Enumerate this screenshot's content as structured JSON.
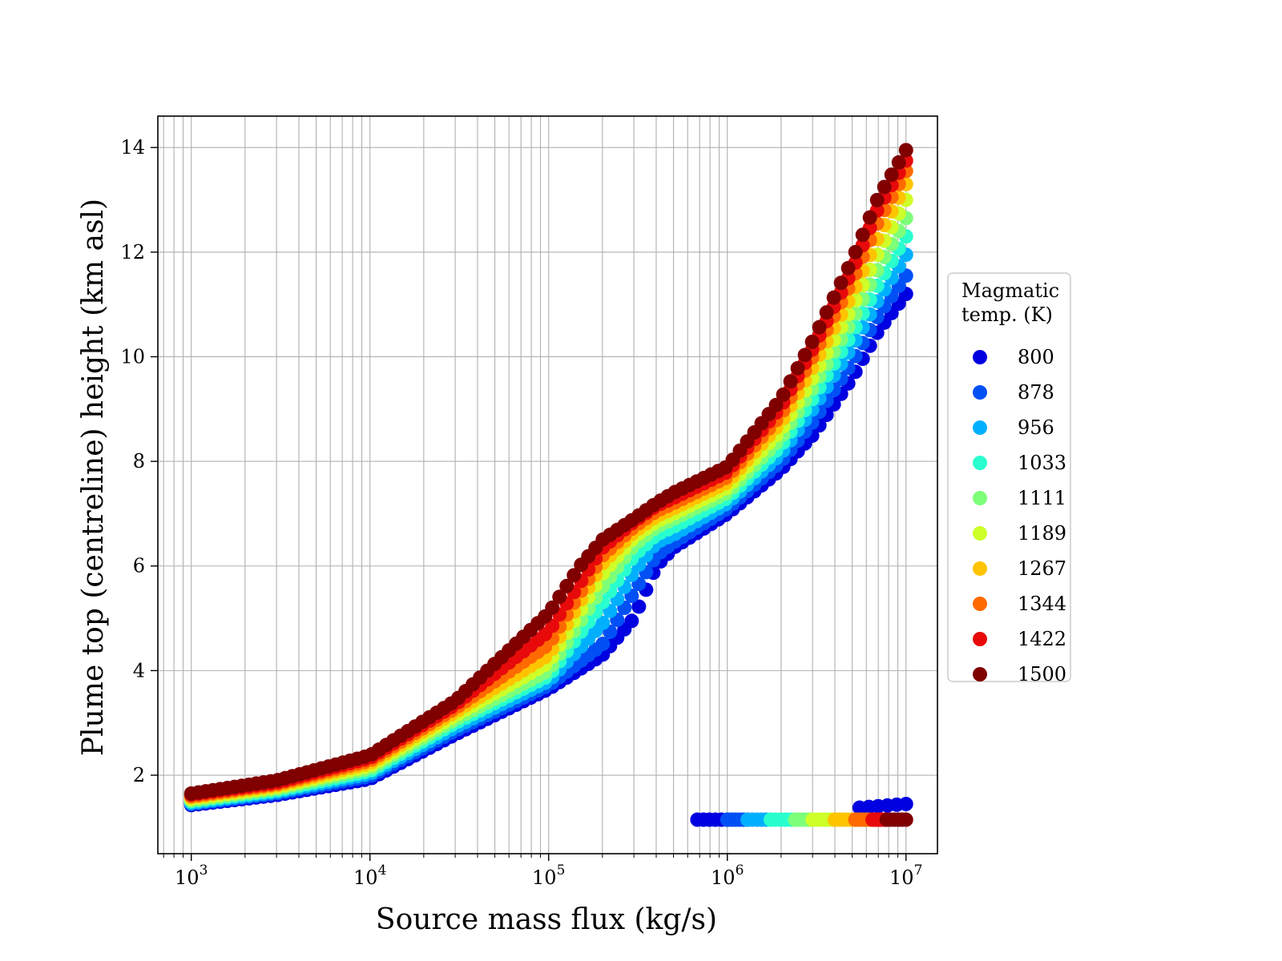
{
  "chart_data": {
    "type": "scatter",
    "xscale": "log",
    "xlim": [
      650,
      15000000
    ],
    "ylim": [
      0.5,
      14.6
    ],
    "xlabel": "Source mass flux (kg/s)",
    "ylabel": "Plume top (centreline) height (km asl)",
    "grid": true,
    "xticks": [
      {
        "value": 1000,
        "base": "10",
        "exp": "3"
      },
      {
        "value": 10000,
        "base": "10",
        "exp": "4"
      },
      {
        "value": 100000,
        "base": "10",
        "exp": "5"
      },
      {
        "value": 1000000,
        "base": "10",
        "exp": "6"
      },
      {
        "value": 10000000,
        "base": "10",
        "exp": "7"
      }
    ],
    "yticks": [
      {
        "value": 2,
        "label": "2"
      },
      {
        "value": 4,
        "label": "4"
      },
      {
        "value": 6,
        "label": "6"
      },
      {
        "value": 8,
        "label": "8"
      },
      {
        "value": 10,
        "label": "10"
      },
      {
        "value": 12,
        "label": "12"
      },
      {
        "value": 14,
        "label": "14"
      }
    ],
    "legend": {
      "title_line1": "Magmatic",
      "title_line2": "temp. (K)",
      "placement": "outside-right"
    },
    "point_count_per_series": 100,
    "series": [
      {
        "name": "800",
        "color": "#0000e0",
        "curve": [
          [
            1000,
            1.43
          ],
          [
            3000,
            1.62
          ],
          [
            10000,
            1.93
          ],
          [
            30000,
            2.78
          ],
          [
            100000,
            3.65
          ],
          [
            200000,
            4.3
          ],
          [
            300000,
            5.0
          ],
          [
            400000,
            6.0
          ],
          [
            500000,
            6.35
          ],
          [
            1000000,
            7.0
          ],
          [
            2000000,
            7.85
          ],
          [
            3000000,
            8.5
          ],
          [
            5000000,
            9.6
          ],
          [
            7000000,
            10.5
          ],
          [
            10000000,
            11.2
          ]
        ],
        "branch": [
          [
            5500000,
            1.38
          ],
          [
            10000000,
            1.45
          ]
        ]
      },
      {
        "name": "878",
        "color": "#0050f5",
        "curve": [
          [
            1000,
            1.45
          ],
          [
            3000,
            1.65
          ],
          [
            10000,
            1.98
          ],
          [
            30000,
            2.85
          ],
          [
            100000,
            3.72
          ],
          [
            200000,
            4.5
          ],
          [
            300000,
            5.5
          ],
          [
            400000,
            6.2
          ],
          [
            500000,
            6.45
          ],
          [
            1000000,
            7.1
          ],
          [
            2000000,
            8.0
          ],
          [
            3000000,
            8.75
          ],
          [
            5000000,
            9.9
          ],
          [
            7000000,
            10.8
          ],
          [
            10000000,
            11.55
          ]
        ]
      },
      {
        "name": "956",
        "color": "#00b0ff",
        "curve": [
          [
            1000,
            1.47
          ],
          [
            3000,
            1.68
          ],
          [
            10000,
            2.03
          ],
          [
            30000,
            2.92
          ],
          [
            100000,
            3.8
          ],
          [
            200000,
            4.9
          ],
          [
            300000,
            5.9
          ],
          [
            400000,
            6.45
          ],
          [
            500000,
            6.6
          ],
          [
            1000000,
            7.2
          ],
          [
            2000000,
            8.15
          ],
          [
            3000000,
            9.0
          ],
          [
            5000000,
            10.2
          ],
          [
            7000000,
            11.1
          ],
          [
            10000000,
            11.95
          ]
        ]
      },
      {
        "name": "1033",
        "color": "#29ffce",
        "curve": [
          [
            1000,
            1.5
          ],
          [
            3000,
            1.71
          ],
          [
            10000,
            2.08
          ],
          [
            30000,
            3.0
          ],
          [
            100000,
            3.9
          ],
          [
            200000,
            5.3
          ],
          [
            300000,
            6.2
          ],
          [
            400000,
            6.6
          ],
          [
            500000,
            6.75
          ],
          [
            1000000,
            7.3
          ],
          [
            2000000,
            8.3
          ],
          [
            3000000,
            9.2
          ],
          [
            5000000,
            10.45
          ],
          [
            7000000,
            11.4
          ],
          [
            10000000,
            12.3
          ]
        ]
      },
      {
        "name": "1111",
        "color": "#7dff7a",
        "curve": [
          [
            1000,
            1.52
          ],
          [
            3000,
            1.74
          ],
          [
            10000,
            2.13
          ],
          [
            30000,
            3.07
          ],
          [
            100000,
            4.0
          ],
          [
            200000,
            5.6
          ],
          [
            300000,
            6.4
          ],
          [
            400000,
            6.75
          ],
          [
            500000,
            6.9
          ],
          [
            1000000,
            7.4
          ],
          [
            2000000,
            8.45
          ],
          [
            3000000,
            9.4
          ],
          [
            5000000,
            10.7
          ],
          [
            7000000,
            11.7
          ],
          [
            10000000,
            12.65
          ]
        ]
      },
      {
        "name": "1189",
        "color": "#ceff29",
        "curve": [
          [
            1000,
            1.55
          ],
          [
            3000,
            1.77
          ],
          [
            10000,
            2.18
          ],
          [
            30000,
            3.14
          ],
          [
            100000,
            4.15
          ],
          [
            200000,
            5.85
          ],
          [
            300000,
            6.55
          ],
          [
            400000,
            6.85
          ],
          [
            500000,
            7.0
          ],
          [
            1000000,
            7.5
          ],
          [
            2000000,
            8.6
          ],
          [
            3000000,
            9.6
          ],
          [
            5000000,
            10.95
          ],
          [
            7000000,
            12.0
          ],
          [
            10000000,
            13.0
          ]
        ]
      },
      {
        "name": "1267",
        "color": "#ffc400",
        "curve": [
          [
            1000,
            1.58
          ],
          [
            3000,
            1.8
          ],
          [
            10000,
            2.23
          ],
          [
            30000,
            3.21
          ],
          [
            100000,
            4.3
          ],
          [
            200000,
            6.05
          ],
          [
            300000,
            6.65
          ],
          [
            400000,
            6.95
          ],
          [
            500000,
            7.1
          ],
          [
            1000000,
            7.6
          ],
          [
            2000000,
            8.75
          ],
          [
            3000000,
            9.8
          ],
          [
            5000000,
            11.2
          ],
          [
            7000000,
            12.3
          ],
          [
            10000000,
            13.3
          ]
        ]
      },
      {
        "name": "1344",
        "color": "#ff6a00",
        "curve": [
          [
            1000,
            1.6
          ],
          [
            3000,
            1.83
          ],
          [
            10000,
            2.28
          ],
          [
            30000,
            3.28
          ],
          [
            100000,
            4.5
          ],
          [
            200000,
            6.2
          ],
          [
            300000,
            6.75
          ],
          [
            400000,
            7.05
          ],
          [
            500000,
            7.2
          ],
          [
            1000000,
            7.7
          ],
          [
            2000000,
            8.9
          ],
          [
            3000000,
            10.0
          ],
          [
            5000000,
            11.45
          ],
          [
            7000000,
            12.6
          ],
          [
            10000000,
            13.55
          ]
        ]
      },
      {
        "name": "1422",
        "color": "#e80a0a",
        "curve": [
          [
            1000,
            1.63
          ],
          [
            3000,
            1.86
          ],
          [
            10000,
            2.33
          ],
          [
            30000,
            3.35
          ],
          [
            100000,
            4.75
          ],
          [
            200000,
            6.35
          ],
          [
            300000,
            6.85
          ],
          [
            400000,
            7.15
          ],
          [
            500000,
            7.3
          ],
          [
            1000000,
            7.8
          ],
          [
            2000000,
            9.05
          ],
          [
            3000000,
            10.15
          ],
          [
            5000000,
            11.65
          ],
          [
            7000000,
            12.85
          ],
          [
            10000000,
            13.75
          ]
        ]
      },
      {
        "name": "1500",
        "color": "#800000",
        "curve": [
          [
            1000,
            1.65
          ],
          [
            3000,
            1.9
          ],
          [
            10000,
            2.38
          ],
          [
            30000,
            3.42
          ],
          [
            100000,
            5.1
          ],
          [
            150000,
            6.0
          ],
          [
            200000,
            6.5
          ],
          [
            300000,
            6.9
          ],
          [
            400000,
            7.2
          ],
          [
            500000,
            7.4
          ],
          [
            1000000,
            7.9
          ],
          [
            2000000,
            9.2
          ],
          [
            3000000,
            10.3
          ],
          [
            5000000,
            11.85
          ],
          [
            7000000,
            13.05
          ],
          [
            10000000,
            13.95
          ]
        ]
      }
    ],
    "bottom_band": {
      "y": 1.15,
      "segments": [
        {
          "series": "800",
          "x": [
            680000,
            1000000
          ]
        },
        {
          "series": "878",
          "x": [
            1000000,
            1300000
          ]
        },
        {
          "series": "956",
          "x": [
            1300000,
            1750000
          ]
        },
        {
          "series": "1033",
          "x": [
            1750000,
            2400000
          ]
        },
        {
          "series": "1111",
          "x": [
            2400000,
            3000000
          ]
        },
        {
          "series": "1189",
          "x": [
            3000000,
            4000000
          ]
        },
        {
          "series": "1267",
          "x": [
            4000000,
            5200000
          ]
        },
        {
          "series": "1344",
          "x": [
            5200000,
            6500000
          ]
        },
        {
          "series": "1422",
          "x": [
            6500000,
            7800000
          ]
        },
        {
          "series": "1500",
          "x": [
            7800000,
            10000000
          ]
        }
      ]
    }
  }
}
